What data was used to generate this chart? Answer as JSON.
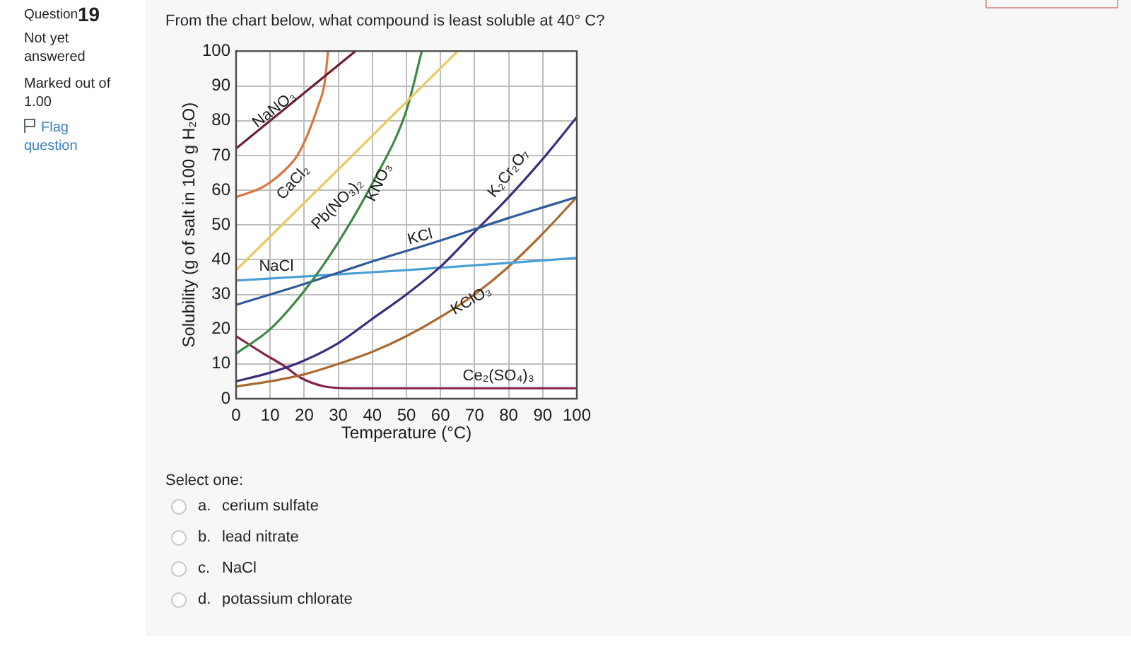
{
  "chart_data": {
    "type": "line",
    "title": "From the chart below, what compound is least soluble at 40° C?",
    "xlabel": "Temperature (°C)",
    "ylabel": "Solubility (g of salt in 100 g H₂O)",
    "xlim": [
      0,
      100
    ],
    "xticks": [
      0,
      10,
      20,
      30,
      40,
      50,
      60,
      70,
      80,
      90,
      100
    ],
    "ylim": [
      0,
      100
    ],
    "yticks": [
      0,
      10,
      20,
      30,
      40,
      50,
      60,
      70,
      80,
      90,
      100
    ],
    "grid": true,
    "marker": "none",
    "series": [
      {
        "name": "NaNO₃",
        "color": "#6e1f33",
        "x": [
          0,
          35
        ],
        "values": [
          72,
          100
        ]
      },
      {
        "name": "CaCl₂",
        "color": "#d8763f",
        "x": [
          0,
          8,
          14,
          18,
          21,
          24,
          26,
          27
        ],
        "values": [
          58,
          61,
          65.5,
          70,
          76,
          84,
          91,
          100
        ]
      },
      {
        "name": "Pb(NO₃)₂",
        "color": "#e9c95e",
        "x": [
          0,
          30,
          65
        ],
        "values": [
          37,
          66,
          100
        ]
      },
      {
        "name": "KNO₃",
        "color": "#3b8a44",
        "x": [
          0,
          10,
          20,
          30,
          40,
          50,
          54.5
        ],
        "values": [
          13,
          20,
          31,
          45,
          62,
          83,
          100
        ]
      },
      {
        "name": "KCl",
        "color": "#2f5b98",
        "x": [
          0,
          20,
          40,
          60,
          80,
          100
        ],
        "values": [
          27,
          33,
          39.5,
          45.5,
          52,
          58
        ]
      },
      {
        "name": "K₂Cr₂O₇",
        "color": "#3f2b7c",
        "x": [
          0,
          10,
          20,
          30,
          40,
          50,
          60,
          70,
          80,
          90,
          100
        ],
        "values": [
          5,
          7.5,
          11,
          16,
          23,
          30,
          38,
          48,
          58,
          69,
          81
        ]
      },
      {
        "name": "NaCl",
        "color": "#4aa0d6",
        "x": [
          0,
          50,
          100
        ],
        "values": [
          34,
          37,
          40.5
        ]
      },
      {
        "name": "KClO₃",
        "color": "#a9692d",
        "x": [
          0,
          10,
          20,
          30,
          40,
          50,
          60,
          70,
          80,
          90,
          100
        ],
        "values": [
          3.5,
          5,
          7,
          10,
          13.5,
          18,
          23.5,
          30,
          38,
          47.5,
          58
        ]
      },
      {
        "name": "Ce₂(SO₄)₃",
        "color": "#86224c",
        "x": [
          0,
          8,
          14,
          19,
          26,
          33,
          100
        ],
        "values": [
          18,
          13,
          9.5,
          6,
          3.5,
          3,
          3
        ]
      }
    ],
    "annotations": [
      "Question",
      "19",
      "Not yet answered",
      "Marked out of 1.00",
      "Flag question",
      "Select one:",
      "a.",
      "cerium sulfate",
      "b.",
      "lead nitrate",
      "c.",
      "NaCl",
      "d.",
      "potassium chlorate"
    ]
  }
}
